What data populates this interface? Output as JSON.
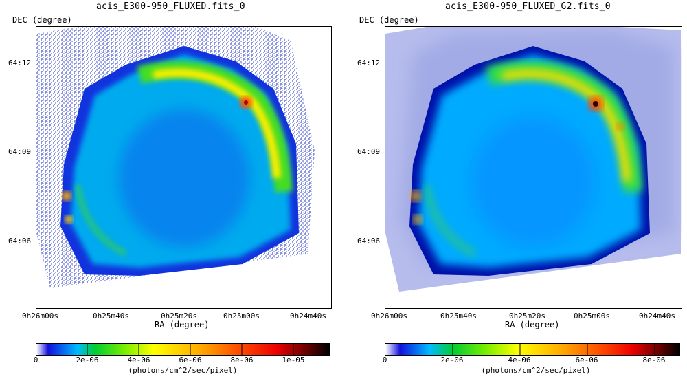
{
  "panels": [
    {
      "title": "acis_E300-950_FLUXED.fits_0",
      "y_axis_label": "DEC (degree)",
      "x_axis_label": "RA (degree)",
      "y_ticks": [
        "64:12",
        "64:09",
        "64:06"
      ],
      "x_ticks": [
        "0h26m00s",
        "0h25m40s",
        "0h25m20s",
        "0h25m00s",
        "0h24m40s"
      ],
      "colorbar_ticks": [
        "0",
        "2e-06",
        "4e-06",
        "6e-06",
        "8e-06",
        "1e-05"
      ],
      "colorbar_unit": "(photons/cm^2/sec/pixel)"
    },
    {
      "title": "acis_E300-950_FLUXED_G2.fits_0",
      "y_axis_label": "DEC (degree)",
      "x_axis_label": "RA (degree)",
      "y_ticks": [
        "64:12",
        "64:09",
        "64:06"
      ],
      "x_ticks": [
        "0h26m00s",
        "0h25m40s",
        "0h25m20s",
        "0h25m00s",
        "0h24m40s"
      ],
      "colorbar_ticks": [
        "0",
        "2e-06",
        "4e-06",
        "6e-06",
        "8e-06"
      ],
      "colorbar_unit": "(photons/cm^2/sec/pixel)"
    }
  ],
  "colormap": [
    "#ffffff",
    "#0000cc",
    "#00bbff",
    "#00cc33",
    "#ffff00",
    "#ff8800",
    "#ee0000",
    "#000000"
  ]
}
